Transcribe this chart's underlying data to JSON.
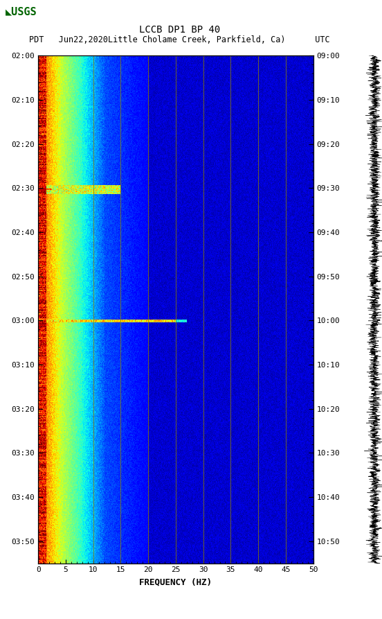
{
  "title_line1": "LCCB DP1 BP 40",
  "title_line2": "PDT   Jun22,2020Little Cholame Creek, Parkfield, Ca)      UTC",
  "xlabel": "FREQUENCY (HZ)",
  "freq_min": 0,
  "freq_max": 50,
  "ytick_pdt": [
    "02:00",
    "02:10",
    "02:20",
    "02:30",
    "02:40",
    "02:50",
    "03:00",
    "03:10",
    "03:20",
    "03:30",
    "03:40",
    "03:50"
  ],
  "ytick_utc": [
    "09:00",
    "09:10",
    "09:20",
    "09:30",
    "09:40",
    "09:50",
    "10:00",
    "10:10",
    "10:20",
    "10:30",
    "10:40",
    "10:50"
  ],
  "xticks": [
    0,
    5,
    10,
    15,
    20,
    25,
    30,
    35,
    40,
    45,
    50
  ],
  "vline_freqs": [
    10,
    15,
    20,
    25,
    30,
    35,
    40,
    45
  ],
  "fig_bg": "#ffffff",
  "colormap": "jet",
  "usgs_color": "#006400",
  "figsize": [
    5.52,
    8.93
  ],
  "dpi": 100,
  "total_minutes": 115,
  "tick_minutes": [
    0,
    10,
    20,
    30,
    40,
    50,
    60,
    70,
    80,
    90,
    100,
    110
  ],
  "event1_minute": 30,
  "event1_duration": 4,
  "event1_freq_max_hz": 15,
  "event2_minute": 60,
  "event2_duration": 1,
  "event2_freq_max_hz": 25
}
